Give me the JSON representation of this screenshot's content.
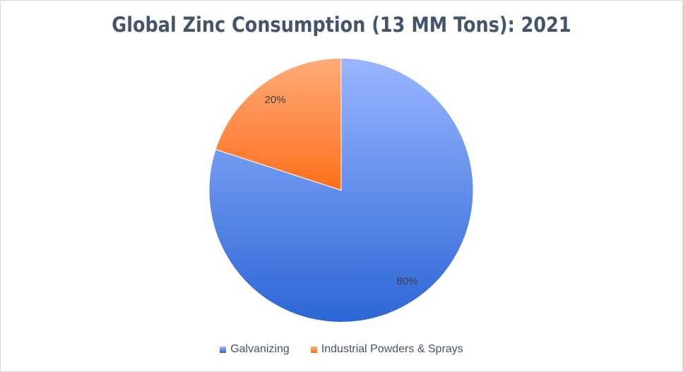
{
  "chart_data": {
    "type": "pie",
    "title": "Global Zinc Consumption (13 MM Tons): 2021",
    "categories": [
      "Galvanizing",
      "Industrial Powders & Sprays"
    ],
    "values": [
      80,
      20
    ],
    "data_labels": [
      "80%",
      "20%"
    ],
    "colors": [
      "#4a7de6",
      "#ff8a3d"
    ],
    "gradients": [
      [
        "#9ab6ff",
        "#2c66d6"
      ],
      [
        "#ffac7a",
        "#ff6f1c"
      ]
    ],
    "legend_position": "bottom"
  }
}
